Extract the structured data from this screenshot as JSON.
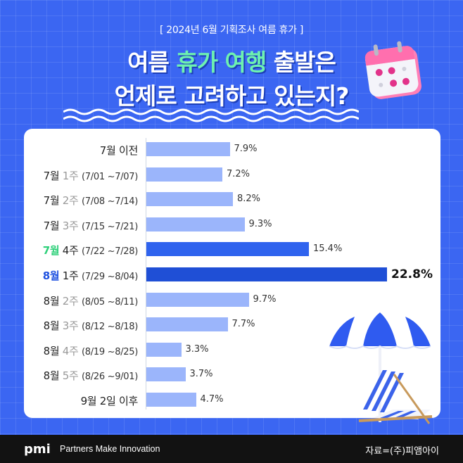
{
  "subtitle": "[ 2024년 6월 기획조사 여름 휴가 ]",
  "title": {
    "line1_a": "여름",
    "line1_b": "휴가 여행",
    "line1_c": "출발은",
    "line2": "언제로 고려하고 있는지?"
  },
  "chart_data": {
    "type": "bar",
    "orientation": "horizontal",
    "unit": "%",
    "categories": [
      "7월 이전",
      "7월 1주 (7/01 ~7/07)",
      "7월 2주 (7/08 ~7/14)",
      "7월 3주 (7/15 ~7/21)",
      "7월 4주 (7/22 ~7/28)",
      "8월 1주 (7/29 ~8/04)",
      "8월 2주 (8/05 ~8/11)",
      "8월 3주 (8/12 ~8/18)",
      "8월 4주 (8/19 ~8/25)",
      "8월 5주 (8/26 ~9/01)",
      "9월 2일 이후"
    ],
    "values": [
      7.9,
      7.2,
      8.2,
      9.3,
      15.4,
      22.8,
      9.7,
      7.7,
      3.3,
      3.7,
      4.7
    ],
    "value_labels": [
      "7.9%",
      "7.2%",
      "8.2%",
      "9.3%",
      "15.4%",
      "22.8%",
      "9.7%",
      "7.7%",
      "3.3%",
      "3.7%",
      "4.7%"
    ],
    "label_parts": [
      {
        "mon": "7월 이전",
        "wk": "",
        "rng": ""
      },
      {
        "mon": "7월",
        "wk": " 1주 ",
        "rng": "(7/01 ~7/07)"
      },
      {
        "mon": "7월",
        "wk": " 2주 ",
        "rng": "(7/08 ~7/14)"
      },
      {
        "mon": "7월",
        "wk": " 3주 ",
        "rng": "(7/15 ~7/21)"
      },
      {
        "mon": "7월",
        "wk": " 4주 ",
        "rng": "(7/22 ~7/28)"
      },
      {
        "mon": "8월",
        "wk": " 1주 ",
        "rng": "(7/29 ~8/04)"
      },
      {
        "mon": "8월",
        "wk": " 2주 ",
        "rng": "(8/05 ~8/11)"
      },
      {
        "mon": "8월",
        "wk": " 3주 ",
        "rng": "(8/12 ~8/18)"
      },
      {
        "mon": "8월",
        "wk": " 4주 ",
        "rng": "(8/19 ~8/25)"
      },
      {
        "mon": "8월",
        "wk": " 5주 ",
        "rng": "(8/26 ~9/01)"
      },
      {
        "mon": "9월 2일 이후",
        "wk": "",
        "rng": ""
      }
    ],
    "highlight": {
      "second": 4,
      "first": 5
    },
    "colors": {
      "default": "#9bb5fb",
      "second": "#2f63ee",
      "first": "#1f4fd6"
    }
  },
  "footer": {
    "logo_text": "pmi",
    "tagline": "Partners Make Innovation",
    "source": "자료=(주)피앰아이"
  }
}
